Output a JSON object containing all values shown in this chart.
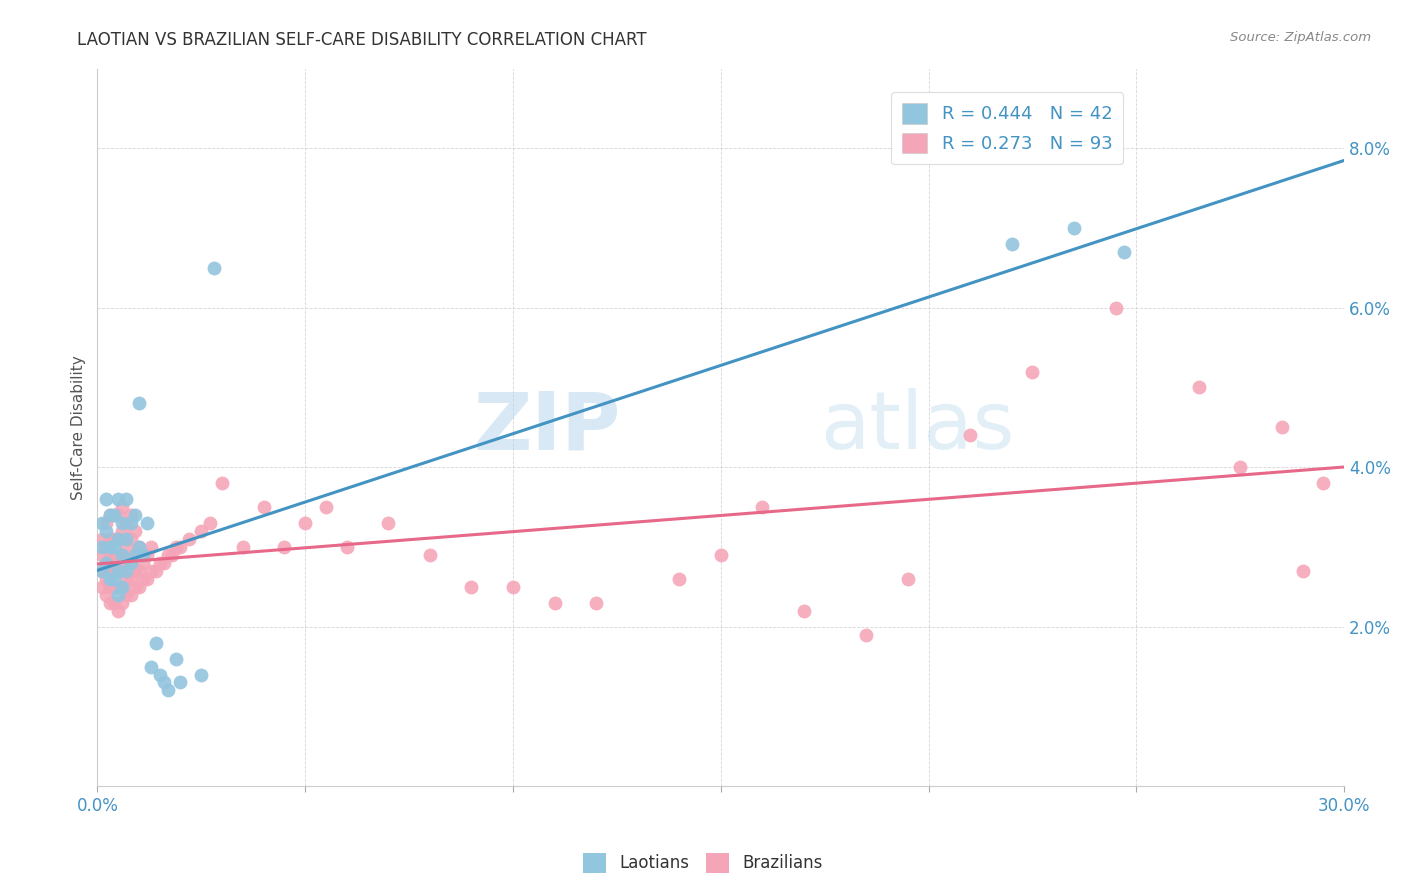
{
  "title": "LAOTIAN VS BRAZILIAN SELF-CARE DISABILITY CORRELATION CHART",
  "source": "Source: ZipAtlas.com",
  "ylabel": "Self-Care Disability",
  "xlim": [
    0.0,
    0.3
  ],
  "ylim": [
    0.0,
    0.09
  ],
  "xticks": [
    0.0,
    0.05,
    0.1,
    0.15,
    0.2,
    0.25,
    0.3
  ],
  "xtick_labels": [
    "0.0%",
    "",
    "",
    "",
    "",
    "",
    "30.0%"
  ],
  "yticks": [
    0.02,
    0.04,
    0.06,
    0.08
  ],
  "ytick_labels": [
    "2.0%",
    "4.0%",
    "6.0%",
    "8.0%"
  ],
  "laotian_color": "#92c5de",
  "brazilian_color": "#f4a6b8",
  "laotian_line_color": "#4393c3",
  "brazilian_line_color": "#e8688a",
  "R_laotian": 0.444,
  "N_laotian": 42,
  "R_brazilian": 0.273,
  "N_brazilian": 93,
  "watermark_zip": "ZIP",
  "watermark_atlas": "atlas",
  "laotian_x": [
    0.001,
    0.001,
    0.001,
    0.002,
    0.002,
    0.002,
    0.003,
    0.003,
    0.003,
    0.004,
    0.004,
    0.004,
    0.005,
    0.005,
    0.005,
    0.005,
    0.006,
    0.006,
    0.006,
    0.007,
    0.007,
    0.007,
    0.008,
    0.008,
    0.009,
    0.009,
    0.01,
    0.01,
    0.011,
    0.012,
    0.013,
    0.014,
    0.015,
    0.016,
    0.017,
    0.019,
    0.02,
    0.025,
    0.028,
    0.22,
    0.235,
    0.247
  ],
  "laotian_y": [
    0.027,
    0.03,
    0.033,
    0.028,
    0.032,
    0.036,
    0.026,
    0.03,
    0.034,
    0.026,
    0.03,
    0.034,
    0.024,
    0.027,
    0.031,
    0.036,
    0.025,
    0.029,
    0.033,
    0.027,
    0.031,
    0.036,
    0.028,
    0.033,
    0.029,
    0.034,
    0.03,
    0.048,
    0.029,
    0.033,
    0.015,
    0.018,
    0.014,
    0.013,
    0.012,
    0.016,
    0.013,
    0.014,
    0.065,
    0.068,
    0.07,
    0.067
  ],
  "brazilian_x": [
    0.001,
    0.001,
    0.001,
    0.001,
    0.002,
    0.002,
    0.002,
    0.002,
    0.002,
    0.003,
    0.003,
    0.003,
    0.003,
    0.003,
    0.003,
    0.004,
    0.004,
    0.004,
    0.004,
    0.004,
    0.004,
    0.005,
    0.005,
    0.005,
    0.005,
    0.005,
    0.005,
    0.006,
    0.006,
    0.006,
    0.006,
    0.006,
    0.006,
    0.007,
    0.007,
    0.007,
    0.007,
    0.007,
    0.008,
    0.008,
    0.008,
    0.008,
    0.008,
    0.009,
    0.009,
    0.009,
    0.009,
    0.01,
    0.01,
    0.01,
    0.011,
    0.011,
    0.012,
    0.012,
    0.013,
    0.013,
    0.014,
    0.015,
    0.016,
    0.017,
    0.018,
    0.019,
    0.02,
    0.022,
    0.025,
    0.027,
    0.03,
    0.035,
    0.04,
    0.045,
    0.05,
    0.055,
    0.06,
    0.07,
    0.08,
    0.09,
    0.1,
    0.11,
    0.12,
    0.14,
    0.15,
    0.16,
    0.17,
    0.185,
    0.195,
    0.21,
    0.225,
    0.245,
    0.265,
    0.275,
    0.285,
    0.29,
    0.295
  ],
  "brazilian_y": [
    0.025,
    0.027,
    0.029,
    0.031,
    0.024,
    0.026,
    0.028,
    0.03,
    0.033,
    0.023,
    0.025,
    0.027,
    0.029,
    0.031,
    0.034,
    0.023,
    0.025,
    0.027,
    0.029,
    0.031,
    0.034,
    0.022,
    0.025,
    0.027,
    0.029,
    0.031,
    0.034,
    0.023,
    0.025,
    0.027,
    0.029,
    0.032,
    0.035,
    0.024,
    0.026,
    0.028,
    0.03,
    0.033,
    0.024,
    0.026,
    0.028,
    0.031,
    0.034,
    0.025,
    0.027,
    0.029,
    0.032,
    0.025,
    0.027,
    0.03,
    0.026,
    0.028,
    0.026,
    0.029,
    0.027,
    0.03,
    0.027,
    0.028,
    0.028,
    0.029,
    0.029,
    0.03,
    0.03,
    0.031,
    0.032,
    0.033,
    0.038,
    0.03,
    0.035,
    0.03,
    0.033,
    0.035,
    0.03,
    0.033,
    0.029,
    0.025,
    0.025,
    0.023,
    0.023,
    0.026,
    0.029,
    0.035,
    0.022,
    0.019,
    0.026,
    0.044,
    0.052,
    0.06,
    0.05,
    0.04,
    0.045,
    0.027,
    0.038
  ]
}
